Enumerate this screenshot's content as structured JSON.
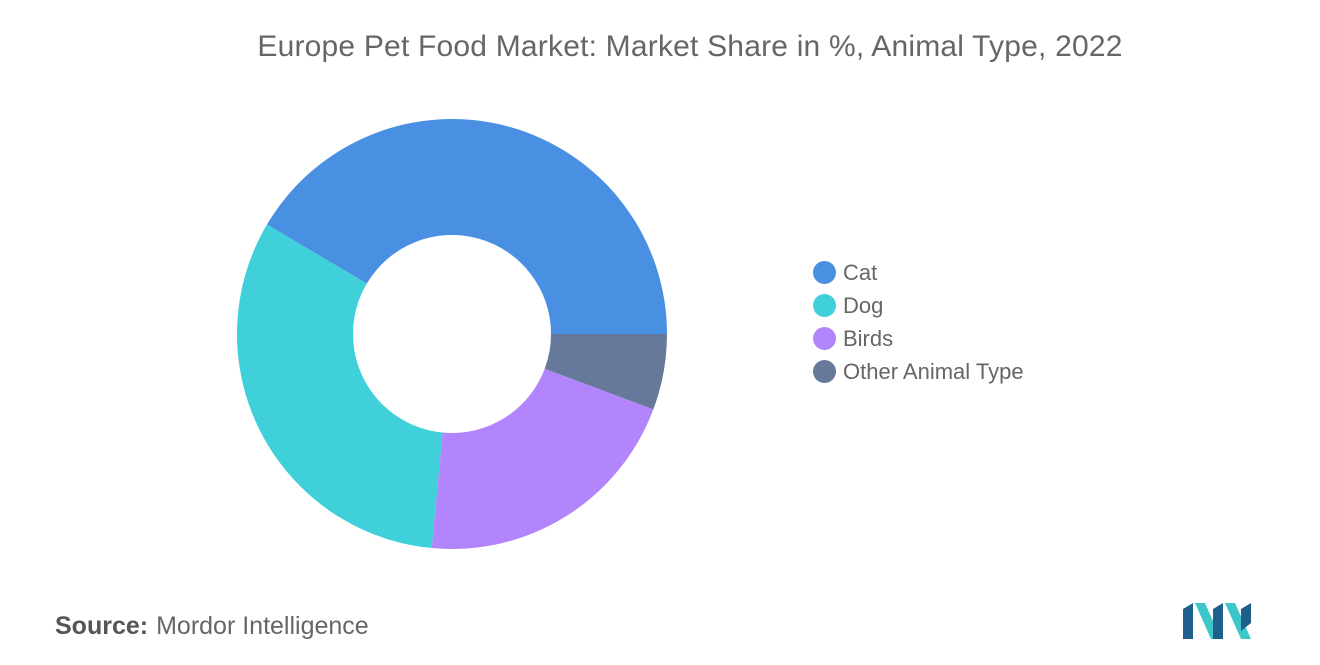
{
  "chart_data": {
    "type": "pie",
    "variant": "donut",
    "title": "Europe Pet Food Market: Market Share in %, Animal Type, 2022",
    "categories": [
      "Cat",
      "Dog",
      "Birds",
      "Other Animal Type"
    ],
    "values": [
      41.5,
      32.0,
      20.8,
      5.7
    ],
    "colors": [
      "#4a90e2",
      "#40d0da",
      "#b385fc",
      "#66799a"
    ],
    "legend_position": "right"
  },
  "source": {
    "label": "Source:",
    "value": "Mordor Intelligence"
  },
  "logo": {
    "icon": "mordor-intelligence-logo-icon",
    "colors": [
      "#1f5f8b",
      "#3ec6c9"
    ]
  }
}
